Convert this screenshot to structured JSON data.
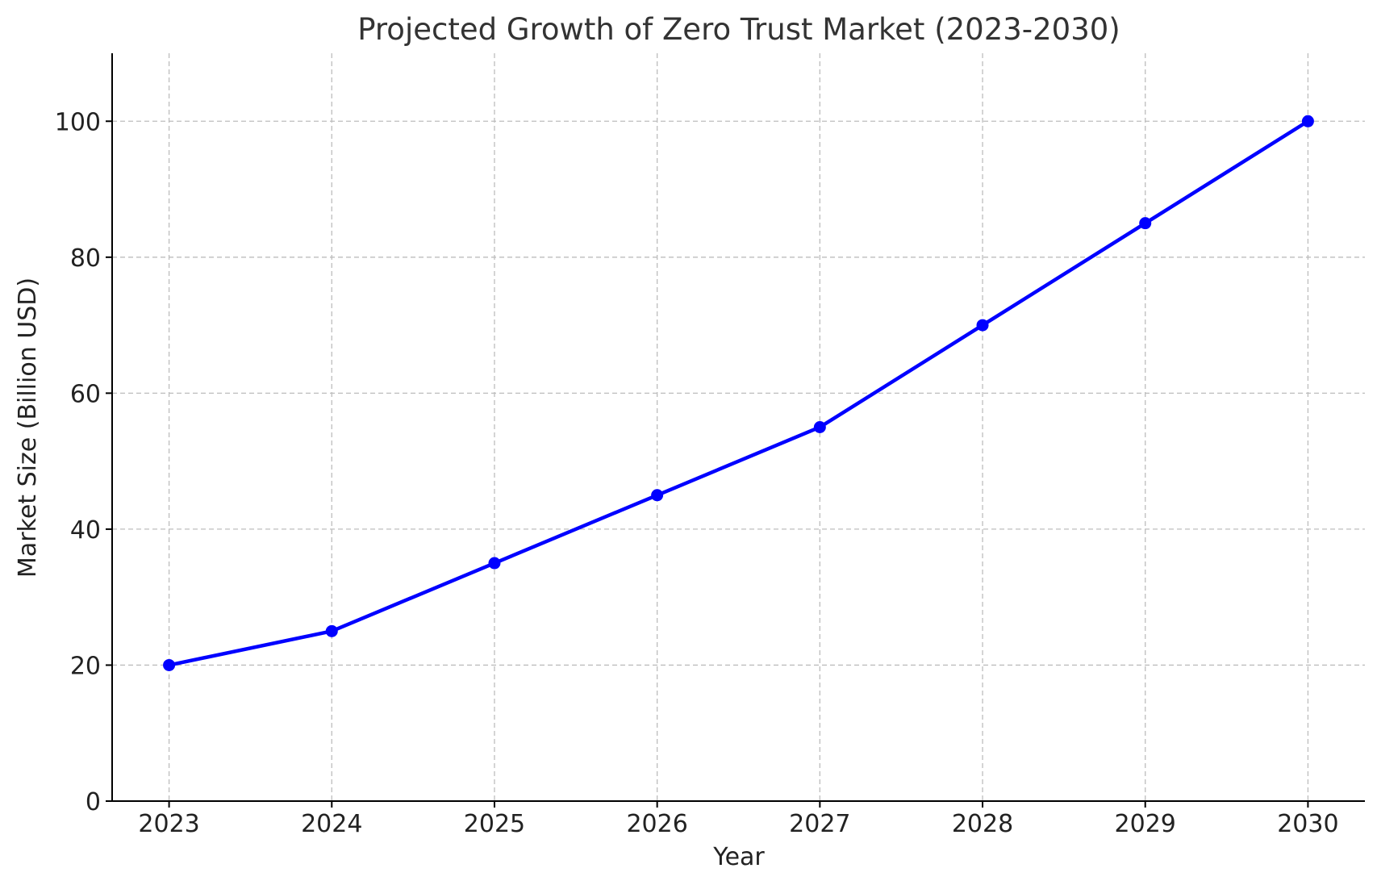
{
  "chart_data": {
    "type": "line",
    "title": "Projected Growth of Zero Trust Market (2023-2030)",
    "xlabel": "Year",
    "ylabel": "Market Size (Billion USD)",
    "x": [
      2023,
      2024,
      2025,
      2026,
      2027,
      2028,
      2029,
      2030
    ],
    "x_tick_labels": [
      "2023",
      "2024",
      "2025",
      "2026",
      "2027",
      "2028",
      "2029",
      "2030"
    ],
    "series": [
      {
        "values": [
          20,
          25,
          35,
          45,
          55,
          70,
          85,
          100
        ],
        "color": "#0000ff",
        "marker": "circle"
      }
    ],
    "xlim": [
      2022.65,
      2030.35
    ],
    "ylim": [
      0,
      110
    ],
    "y_ticks": [
      0,
      20,
      40,
      60,
      80,
      100
    ],
    "y_tick_labels": [
      "0",
      "20",
      "40",
      "60",
      "80",
      "100"
    ],
    "grid": true,
    "legend": "none"
  }
}
